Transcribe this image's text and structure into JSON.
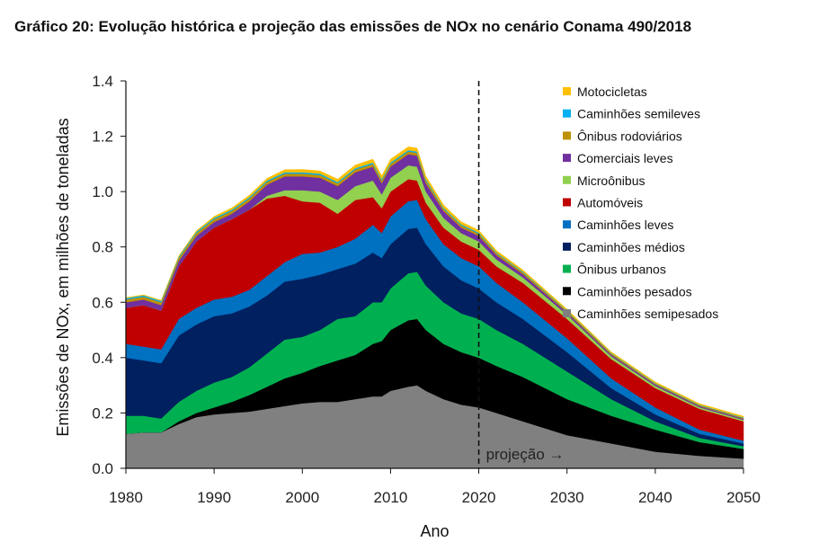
{
  "title": "Gráfico 20: Evolução histórica e projeção das emissões de NOx no cenário Conama 490/2018",
  "chart_data": {
    "type": "area",
    "stacked": true,
    "xlabel": "Ano",
    "ylabel": "Emissões de NOx, em milhões de toneladas",
    "xlim": [
      1980,
      2050
    ],
    "ylim": [
      0,
      1.4
    ],
    "xticks": [
      1980,
      1990,
      2000,
      2010,
      2020,
      2030,
      2040,
      2050
    ],
    "yticks": [
      "0.0",
      "0.2",
      "0.4",
      "0.6",
      "0.8",
      "1.0",
      "1.2",
      "1.4"
    ],
    "grid": false,
    "legend_position": "top-right",
    "annotation": {
      "text": "projeção →",
      "x": 2020
    },
    "x": [
      1980,
      1982,
      1984,
      1986,
      1988,
      1990,
      1992,
      1994,
      1996,
      1998,
      2000,
      2002,
      2004,
      2006,
      2008,
      2009,
      2010,
      2012,
      2013,
      2014,
      2016,
      2018,
      2020,
      2022,
      2025,
      2030,
      2035,
      2040,
      2045,
      2050
    ],
    "series": [
      {
        "name": "Caminhões semipesados",
        "color": "#808080",
        "values": [
          0.125,
          0.13,
          0.13,
          0.16,
          0.185,
          0.195,
          0.2,
          0.205,
          0.215,
          0.225,
          0.235,
          0.24,
          0.24,
          0.25,
          0.26,
          0.26,
          0.28,
          0.295,
          0.3,
          0.28,
          0.25,
          0.23,
          0.22,
          0.2,
          0.17,
          0.12,
          0.09,
          0.06,
          0.045,
          0.035
        ]
      },
      {
        "name": "Caminhões pesados",
        "color": "#000000",
        "values": [
          0.0,
          0.0,
          0.0,
          0.01,
          0.015,
          0.025,
          0.04,
          0.06,
          0.08,
          0.1,
          0.11,
          0.13,
          0.15,
          0.16,
          0.19,
          0.2,
          0.22,
          0.24,
          0.24,
          0.22,
          0.2,
          0.19,
          0.18,
          0.17,
          0.16,
          0.13,
          0.1,
          0.08,
          0.05,
          0.035
        ]
      },
      {
        "name": "Ônibus urbanos",
        "color": "#00b050",
        "values": [
          0.065,
          0.06,
          0.05,
          0.07,
          0.08,
          0.09,
          0.09,
          0.1,
          0.12,
          0.14,
          0.13,
          0.13,
          0.15,
          0.14,
          0.15,
          0.14,
          0.15,
          0.17,
          0.17,
          0.16,
          0.15,
          0.14,
          0.14,
          0.13,
          0.12,
          0.1,
          0.06,
          0.03,
          0.015,
          0.01
        ]
      },
      {
        "name": "Caminhões médios",
        "color": "#002060",
        "values": [
          0.21,
          0.2,
          0.2,
          0.24,
          0.24,
          0.24,
          0.23,
          0.22,
          0.21,
          0.21,
          0.21,
          0.2,
          0.18,
          0.19,
          0.18,
          0.16,
          0.16,
          0.16,
          0.16,
          0.15,
          0.13,
          0.12,
          0.11,
          0.1,
          0.09,
          0.07,
          0.04,
          0.025,
          0.015,
          0.01
        ]
      },
      {
        "name": "Caminhões leves",
        "color": "#0070c0",
        "values": [
          0.05,
          0.05,
          0.05,
          0.06,
          0.06,
          0.06,
          0.06,
          0.06,
          0.07,
          0.07,
          0.09,
          0.08,
          0.08,
          0.09,
          0.1,
          0.09,
          0.1,
          0.1,
          0.1,
          0.09,
          0.08,
          0.08,
          0.08,
          0.07,
          0.06,
          0.05,
          0.035,
          0.025,
          0.015,
          0.01
        ]
      },
      {
        "name": "Automóveis",
        "color": "#c00000",
        "values": [
          0.13,
          0.15,
          0.14,
          0.19,
          0.24,
          0.26,
          0.28,
          0.29,
          0.28,
          0.24,
          0.19,
          0.18,
          0.12,
          0.14,
          0.1,
          0.09,
          0.09,
          0.08,
          0.07,
          0.06,
          0.06,
          0.06,
          0.06,
          0.06,
          0.07,
          0.07,
          0.07,
          0.07,
          0.075,
          0.07
        ]
      },
      {
        "name": "Microônibus",
        "color": "#92d050",
        "values": [
          0.0,
          0.0,
          0.0,
          0.0,
          0.0,
          0.0,
          0.0,
          0.0,
          0.01,
          0.02,
          0.04,
          0.04,
          0.05,
          0.05,
          0.06,
          0.05,
          0.05,
          0.05,
          0.05,
          0.04,
          0.035,
          0.03,
          0.03,
          0.025,
          0.02,
          0.015,
          0.01,
          0.008,
          0.006,
          0.005
        ]
      },
      {
        "name": "Comerciais leves",
        "color": "#7030a0",
        "values": [
          0.02,
          0.02,
          0.02,
          0.02,
          0.02,
          0.02,
          0.02,
          0.03,
          0.04,
          0.05,
          0.05,
          0.05,
          0.05,
          0.05,
          0.05,
          0.04,
          0.04,
          0.04,
          0.04,
          0.03,
          0.025,
          0.02,
          0.02,
          0.015,
          0.012,
          0.008,
          0.006,
          0.005,
          0.004,
          0.004
        ]
      },
      {
        "name": "Ônibus rodoviários",
        "color": "#bf9000",
        "values": [
          0.01,
          0.01,
          0.01,
          0.01,
          0.01,
          0.01,
          0.01,
          0.01,
          0.01,
          0.01,
          0.01,
          0.01,
          0.01,
          0.01,
          0.01,
          0.01,
          0.01,
          0.01,
          0.01,
          0.01,
          0.008,
          0.008,
          0.008,
          0.007,
          0.006,
          0.005,
          0.004,
          0.003,
          0.003,
          0.003
        ]
      },
      {
        "name": "Caminhões semileves",
        "color": "#00b0f0",
        "values": [
          0.005,
          0.005,
          0.005,
          0.005,
          0.005,
          0.005,
          0.005,
          0.005,
          0.005,
          0.005,
          0.005,
          0.005,
          0.005,
          0.005,
          0.005,
          0.005,
          0.005,
          0.005,
          0.005,
          0.005,
          0.004,
          0.004,
          0.004,
          0.003,
          0.003,
          0.002,
          0.002,
          0.002,
          0.002,
          0.002
        ]
      },
      {
        "name": "Motocicletas",
        "color": "#ffc000",
        "values": [
          0.002,
          0.002,
          0.002,
          0.003,
          0.004,
          0.005,
          0.006,
          0.007,
          0.008,
          0.009,
          0.01,
          0.01,
          0.01,
          0.011,
          0.012,
          0.012,
          0.012,
          0.012,
          0.012,
          0.011,
          0.01,
          0.009,
          0.008,
          0.007,
          0.006,
          0.005,
          0.004,
          0.004,
          0.004,
          0.004
        ]
      }
    ]
  }
}
